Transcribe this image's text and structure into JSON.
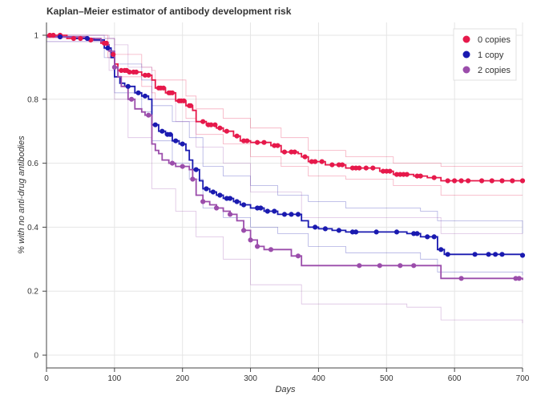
{
  "chart_data": {
    "type": "line",
    "title": "Kaplan–Meier estimator of antibody development risk",
    "xlabel": "Days",
    "ylabel": "% with no anti-drug antibodies",
    "xlim": [
      0,
      700
    ],
    "ylim": [
      -0.04,
      1.04
    ],
    "grid": true,
    "legend_position": "top-right",
    "x_ticks": [
      0,
      100,
      200,
      300,
      400,
      500,
      600,
      700
    ],
    "y_ticks": [
      0,
      0.2,
      0.4,
      0.6,
      0.8,
      1
    ],
    "x_tick_labels": [
      "0",
      "100",
      "200",
      "300",
      "400",
      "500",
      "600",
      "700"
    ],
    "y_tick_labels": [
      "0",
      "0.2",
      "0.4",
      "0.6",
      "0.8",
      "1"
    ],
    "series": [
      {
        "name": "0 copies",
        "color": "#e6194b",
        "step_points": [
          [
            0,
            1.0
          ],
          [
            30,
            0.99
          ],
          [
            60,
            0.985
          ],
          [
            80,
            0.975
          ],
          [
            90,
            0.96
          ],
          [
            95,
            0.94
          ],
          [
            100,
            0.91
          ],
          [
            105,
            0.89
          ],
          [
            120,
            0.885
          ],
          [
            140,
            0.875
          ],
          [
            155,
            0.86
          ],
          [
            160,
            0.835
          ],
          [
            175,
            0.82
          ],
          [
            190,
            0.795
          ],
          [
            205,
            0.78
          ],
          [
            215,
            0.765
          ],
          [
            220,
            0.73
          ],
          [
            235,
            0.72
          ],
          [
            250,
            0.71
          ],
          [
            260,
            0.7
          ],
          [
            275,
            0.685
          ],
          [
            285,
            0.67
          ],
          [
            300,
            0.665
          ],
          [
            330,
            0.655
          ],
          [
            345,
            0.635
          ],
          [
            370,
            0.63
          ],
          [
            375,
            0.62
          ],
          [
            385,
            0.605
          ],
          [
            410,
            0.595
          ],
          [
            440,
            0.585
          ],
          [
            490,
            0.575
          ],
          [
            510,
            0.565
          ],
          [
            540,
            0.56
          ],
          [
            560,
            0.555
          ],
          [
            580,
            0.545
          ],
          [
            700,
            0.545
          ]
        ],
        "censor_x": [
          5,
          10,
          20,
          40,
          50,
          65,
          85,
          88,
          98,
          110,
          115,
          118,
          122,
          128,
          132,
          145,
          150,
          165,
          168,
          172,
          180,
          182,
          185,
          195,
          198,
          202,
          210,
          212,
          230,
          238,
          242,
          248,
          255,
          265,
          280,
          290,
          295,
          310,
          320,
          335,
          340,
          350,
          360,
          365,
          380,
          390,
          395,
          405,
          420,
          430,
          435,
          450,
          455,
          460,
          470,
          480,
          495,
          500,
          505,
          515,
          520,
          525,
          530,
          545,
          550,
          570,
          590,
          600,
          610,
          620,
          640,
          655,
          670,
          685,
          700
        ]
      },
      {
        "name": "1 copy",
        "color": "#1a1ab0",
        "step_points": [
          [
            0,
            0.995
          ],
          [
            40,
            0.99
          ],
          [
            70,
            0.985
          ],
          [
            85,
            0.96
          ],
          [
            95,
            0.93
          ],
          [
            100,
            0.87
          ],
          [
            108,
            0.85
          ],
          [
            115,
            0.84
          ],
          [
            130,
            0.82
          ],
          [
            140,
            0.81
          ],
          [
            150,
            0.8
          ],
          [
            155,
            0.72
          ],
          [
            165,
            0.7
          ],
          [
            175,
            0.69
          ],
          [
            185,
            0.67
          ],
          [
            195,
            0.66
          ],
          [
            205,
            0.64
          ],
          [
            210,
            0.61
          ],
          [
            215,
            0.58
          ],
          [
            225,
            0.545
          ],
          [
            230,
            0.52
          ],
          [
            240,
            0.51
          ],
          [
            250,
            0.5
          ],
          [
            260,
            0.49
          ],
          [
            275,
            0.48
          ],
          [
            285,
            0.47
          ],
          [
            300,
            0.46
          ],
          [
            320,
            0.45
          ],
          [
            340,
            0.44
          ],
          [
            375,
            0.42
          ],
          [
            385,
            0.4
          ],
          [
            400,
            0.395
          ],
          [
            420,
            0.39
          ],
          [
            440,
            0.385
          ],
          [
            530,
            0.38
          ],
          [
            550,
            0.37
          ],
          [
            575,
            0.33
          ],
          [
            585,
            0.315
          ],
          [
            700,
            0.312
          ]
        ],
        "censor_x": [
          20,
          60,
          90,
          120,
          135,
          145,
          160,
          170,
          178,
          182,
          190,
          200,
          220,
          235,
          245,
          255,
          265,
          270,
          280,
          290,
          310,
          315,
          325,
          335,
          350,
          360,
          370,
          395,
          410,
          430,
          450,
          455,
          485,
          515,
          540,
          545,
          560,
          570,
          580,
          590,
          630,
          650,
          660,
          670,
          700
        ]
      },
      {
        "name": "2 copies",
        "color": "#9b4dab",
        "step_points": [
          [
            0,
            0.995
          ],
          [
            60,
            0.99
          ],
          [
            80,
            0.98
          ],
          [
            85,
            0.97
          ],
          [
            92,
            0.95
          ],
          [
            100,
            0.9
          ],
          [
            105,
            0.87
          ],
          [
            110,
            0.84
          ],
          [
            120,
            0.8
          ],
          [
            130,
            0.77
          ],
          [
            140,
            0.76
          ],
          [
            145,
            0.75
          ],
          [
            155,
            0.66
          ],
          [
            160,
            0.64
          ],
          [
            165,
            0.63
          ],
          [
            170,
            0.61
          ],
          [
            180,
            0.6
          ],
          [
            190,
            0.59
          ],
          [
            210,
            0.58
          ],
          [
            215,
            0.55
          ],
          [
            220,
            0.5
          ],
          [
            230,
            0.48
          ],
          [
            240,
            0.47
          ],
          [
            250,
            0.46
          ],
          [
            260,
            0.45
          ],
          [
            270,
            0.44
          ],
          [
            280,
            0.42
          ],
          [
            290,
            0.39
          ],
          [
            300,
            0.36
          ],
          [
            310,
            0.34
          ],
          [
            320,
            0.33
          ],
          [
            350,
            0.33
          ],
          [
            360,
            0.31
          ],
          [
            375,
            0.28
          ],
          [
            530,
            0.28
          ],
          [
            540,
            0.28
          ],
          [
            580,
            0.24
          ],
          [
            700,
            0.235
          ]
        ],
        "censor_x": [
          100,
          125,
          150,
          185,
          200,
          215,
          230,
          250,
          270,
          290,
          300,
          310,
          330,
          370,
          460,
          490,
          520,
          540,
          610,
          690,
          695
        ]
      }
    ],
    "confidence_bands": [
      {
        "name": "0 copies CI",
        "color": "#e6194b",
        "upper": [
          [
            0,
            1.0
          ],
          [
            90,
            0.99
          ],
          [
            100,
            0.94
          ],
          [
            140,
            0.9
          ],
          [
            155,
            0.89
          ],
          [
            160,
            0.86
          ],
          [
            205,
            0.81
          ],
          [
            220,
            0.77
          ],
          [
            260,
            0.74
          ],
          [
            300,
            0.71
          ],
          [
            345,
            0.68
          ],
          [
            385,
            0.64
          ],
          [
            440,
            0.62
          ],
          [
            510,
            0.6
          ],
          [
            580,
            0.59
          ],
          [
            700,
            0.59
          ]
        ],
        "lower": [
          [
            0,
            0.99
          ],
          [
            90,
            0.93
          ],
          [
            100,
            0.87
          ],
          [
            140,
            0.84
          ],
          [
            155,
            0.82
          ],
          [
            160,
            0.8
          ],
          [
            205,
            0.74
          ],
          [
            220,
            0.69
          ],
          [
            260,
            0.66
          ],
          [
            300,
            0.62
          ],
          [
            345,
            0.59
          ],
          [
            385,
            0.56
          ],
          [
            440,
            0.55
          ],
          [
            510,
            0.53
          ],
          [
            580,
            0.5
          ],
          [
            700,
            0.5
          ]
        ]
      },
      {
        "name": "1 copy CI",
        "color": "#1a1ab0",
        "upper": [
          [
            0,
            1.0
          ],
          [
            85,
            0.99
          ],
          [
            100,
            0.91
          ],
          [
            140,
            0.86
          ],
          [
            155,
            0.78
          ],
          [
            185,
            0.73
          ],
          [
            210,
            0.68
          ],
          [
            230,
            0.59
          ],
          [
            260,
            0.56
          ],
          [
            300,
            0.53
          ],
          [
            340,
            0.5
          ],
          [
            385,
            0.48
          ],
          [
            440,
            0.46
          ],
          [
            550,
            0.45
          ],
          [
            575,
            0.42
          ],
          [
            700,
            0.38
          ]
        ],
        "lower": [
          [
            0,
            0.98
          ],
          [
            85,
            0.93
          ],
          [
            100,
            0.82
          ],
          [
            140,
            0.76
          ],
          [
            155,
            0.67
          ],
          [
            185,
            0.6
          ],
          [
            210,
            0.55
          ],
          [
            230,
            0.46
          ],
          [
            260,
            0.43
          ],
          [
            300,
            0.4
          ],
          [
            340,
            0.38
          ],
          [
            385,
            0.34
          ],
          [
            440,
            0.32
          ],
          [
            550,
            0.3
          ],
          [
            575,
            0.26
          ],
          [
            700,
            0.25
          ]
        ]
      },
      {
        "name": "2 copies CI",
        "color": "#9b4dab",
        "upper": [
          [
            0,
            1.0
          ],
          [
            92,
            0.99
          ],
          [
            100,
            0.97
          ],
          [
            120,
            0.9
          ],
          [
            155,
            0.8
          ],
          [
            190,
            0.73
          ],
          [
            220,
            0.65
          ],
          [
            260,
            0.6
          ],
          [
            300,
            0.51
          ],
          [
            375,
            0.43
          ],
          [
            530,
            0.43
          ],
          [
            580,
            0.38
          ],
          [
            700,
            0.38
          ]
        ],
        "lower": [
          [
            0,
            0.98
          ],
          [
            92,
            0.89
          ],
          [
            100,
            0.8
          ],
          [
            120,
            0.68
          ],
          [
            155,
            0.52
          ],
          [
            190,
            0.45
          ],
          [
            220,
            0.37
          ],
          [
            260,
            0.3
          ],
          [
            300,
            0.22
          ],
          [
            375,
            0.16
          ],
          [
            530,
            0.15
          ],
          [
            580,
            0.11
          ],
          [
            700,
            0.1
          ]
        ]
      }
    ]
  }
}
